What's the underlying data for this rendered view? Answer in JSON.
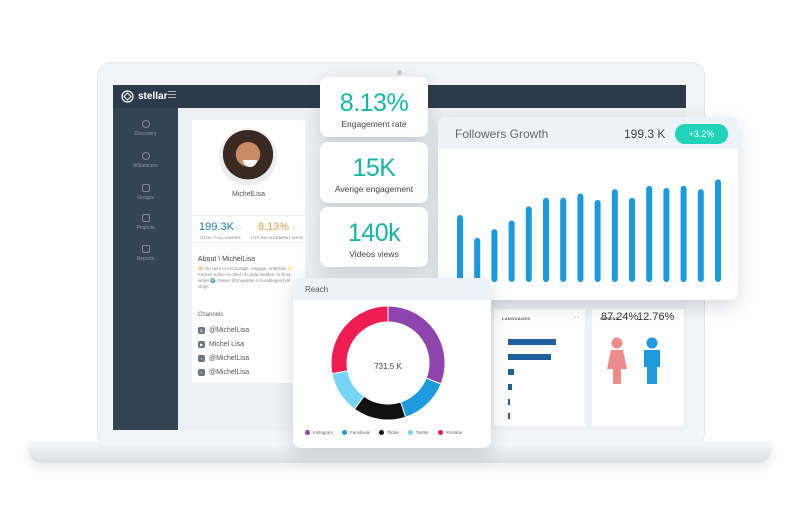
{
  "app": {
    "name": "stellar"
  },
  "sidebar": {
    "items": [
      {
        "label": "Discovery",
        "icon": "compass-icon"
      },
      {
        "label": "Influencers",
        "icon": "users-icon"
      },
      {
        "label": "Groups",
        "icon": "folder-icon"
      },
      {
        "label": "Projects",
        "icon": "briefcase-icon"
      },
      {
        "label": "Reports",
        "icon": "chart-icon"
      }
    ]
  },
  "profile": {
    "name": "MichelLisa",
    "followers": {
      "value": "199.3K",
      "label": "TOTAL FOLLOWERS"
    },
    "engagement": {
      "value": "8.13%",
      "label": "TOP ENGAGEMENT RATE"
    },
    "about_heading": "About \\ MichelLisa",
    "about_text": "🔆 On here to encourage, engage, entertain ✨ Former editor-in-chief of Linda meiden, tv-host, writer 🌍 Owner @shopjetje in lenadiegenzynl vlogs:",
    "channels_heading": "Channels",
    "channels": [
      {
        "handle": "@MichelLisa",
        "icon": "instagram-icon"
      },
      {
        "handle": "Michel Lisa",
        "icon": "youtube-icon"
      },
      {
        "handle": "@MichelLisa",
        "icon": "tiktok-icon"
      },
      {
        "handle": "@MichelLisa",
        "icon": "twitter-icon"
      }
    ]
  },
  "kpis": [
    {
      "value": "8.13%",
      "label": "Engagement rate"
    },
    {
      "value": "15K",
      "label": "Averige engagement"
    },
    {
      "value": "140k",
      "label": "Videos views"
    }
  ],
  "followers_growth": {
    "title": "Followers Growth",
    "value": "199.3 K",
    "badge": "+3.2%",
    "color": "#1a9be0"
  },
  "reach": {
    "title": "Reach",
    "center_value": "731.5 K",
    "legend": [
      {
        "label": "Instagram",
        "color": "#8e44ad"
      },
      {
        "label": "Facebook",
        "color": "#1e9be0"
      },
      {
        "label": "Tiktok",
        "color": "#111111"
      },
      {
        "label": "Twitter",
        "color": "#76d4f5"
      },
      {
        "label": "Youtube",
        "color": "#ee1d52"
      }
    ]
  },
  "languages": {
    "title": "LANGUAGES",
    "rows": [
      {
        "value": 0.6
      },
      {
        "value": 0.54
      },
      {
        "value": 0.08
      },
      {
        "value": 0.05
      },
      {
        "value": 0.03
      },
      {
        "value": 0.02
      }
    ]
  },
  "gender": {
    "title": "GENDER",
    "female_pct": "87.24%",
    "male_pct": "12.76%",
    "female_color": "#f08b8b",
    "male_color": "#1e9be0"
  },
  "chart_data": [
    {
      "type": "bar",
      "values": [
        0.62,
        0.41,
        0.49,
        0.57,
        0.7,
        0.78,
        0.78,
        0.82,
        0.76,
        0.86,
        0.78,
        0.89,
        0.87,
        0.89,
        0.86,
        0.95
      ],
      "color": "#1a9be0"
    },
    {
      "type": "pie",
      "categories": [
        "Instagram",
        "Facebook",
        "Tiktok",
        "Twitter",
        "Youtube"
      ],
      "values": [
        31,
        14,
        15,
        12,
        28
      ],
      "colors": [
        "#8e44ad",
        "#1e9be0",
        "#111111",
        "#76d4f5",
        "#ee1d52"
      ]
    }
  ]
}
